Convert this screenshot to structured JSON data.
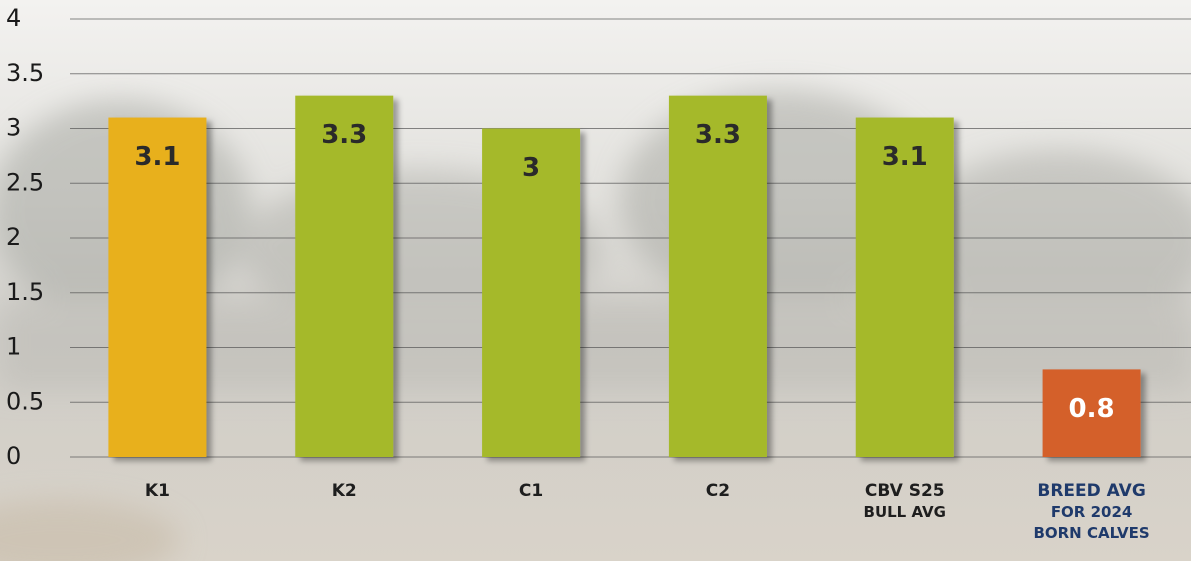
{
  "chart_data": {
    "type": "bar",
    "categories": [
      "K1",
      "K2",
      "C1",
      "C2",
      "CBV S25\nBULL AVG",
      "BREED AVG\nFOR 2024\nBORN CALVES"
    ],
    "values": [
      3.1,
      3.3,
      3,
      3.3,
      3.1,
      0.8
    ],
    "colors": [
      "#e8b01c",
      "#a5b92a",
      "#a5b92a",
      "#a5b92a",
      "#a5b92a",
      "#d4612a"
    ],
    "value_label_colors": [
      "#2a2a2a",
      "#2a2a2a",
      "#2a2a2a",
      "#2a2a2a",
      "#2a2a2a",
      "#ffffff"
    ],
    "category_label_colors": [
      "#1e1e1e",
      "#1e1e1e",
      "#1e1e1e",
      "#1e1e1e",
      "#1e1e1e",
      "#1f3a6b"
    ],
    "ylim": [
      0,
      4
    ],
    "yticks": [
      0,
      0.5,
      1,
      1.5,
      2,
      2.5,
      3,
      3.5,
      4
    ],
    "grid": true
  }
}
